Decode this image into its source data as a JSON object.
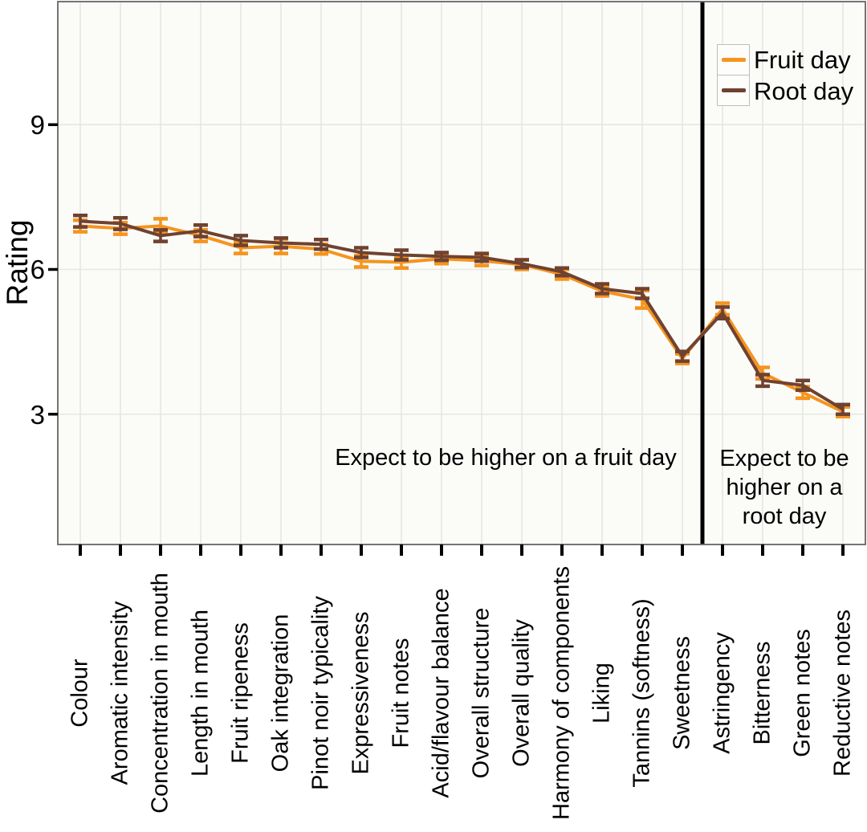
{
  "chart_data": {
    "type": "line",
    "title": "",
    "xlabel": "",
    "ylabel": "Rating",
    "ylim": [
      0.3,
      11.55
    ],
    "yticks": [
      3,
      6,
      9
    ],
    "grid": "major",
    "legend_position": "top-right",
    "categories": [
      "Colour",
      "Aromatic intensity",
      "Concentration in mouth",
      "Length in mouth",
      "Fruit ripeness",
      "Oak integration",
      "Pinot noir typicality",
      "Expressiveness",
      "Fruit notes",
      "Acid/flavour balance",
      "Overall structure",
      "Overall quality",
      "Harmony of components",
      "Liking",
      "Tannins (softness)",
      "Sweetness",
      "Astringency",
      "Bitterness",
      "Green notes",
      "Reductive notes"
    ],
    "series": [
      {
        "name": "Fruit day",
        "color": "#F5941E",
        "values": [
          6.9,
          6.85,
          6.9,
          6.7,
          6.45,
          6.48,
          6.42,
          6.17,
          6.15,
          6.22,
          6.18,
          6.1,
          5.9,
          5.55,
          5.38,
          4.15,
          5.18,
          3.85,
          3.45,
          3.05
        ],
        "errors": [
          0.12,
          0.12,
          0.15,
          0.12,
          0.12,
          0.15,
          0.1,
          0.12,
          0.12,
          0.1,
          0.1,
          0.1,
          0.1,
          0.1,
          0.18,
          0.1,
          0.12,
          0.12,
          0.12,
          0.1
        ]
      },
      {
        "name": "Root day",
        "color": "#6F4230",
        "values": [
          7.0,
          6.95,
          6.7,
          6.8,
          6.6,
          6.55,
          6.52,
          6.35,
          6.3,
          6.27,
          6.25,
          6.12,
          5.95,
          5.6,
          5.5,
          4.2,
          5.1,
          3.7,
          3.6,
          3.1
        ],
        "errors": [
          0.12,
          0.12,
          0.12,
          0.12,
          0.1,
          0.1,
          0.1,
          0.1,
          0.1,
          0.08,
          0.08,
          0.08,
          0.08,
          0.1,
          0.1,
          0.1,
          0.12,
          0.12,
          0.1,
          0.1
        ]
      }
    ],
    "divider": {
      "after_category": "Sweetness",
      "color": "#000000"
    },
    "annotations": [
      {
        "text": "Expect to be higher on a fruit day",
        "side": "left-of-divider"
      },
      {
        "text": "Expect to be\nhigher on a\nroot day",
        "side": "right-of-divider"
      }
    ],
    "style": {
      "panel_bg": "#fbfbf8",
      "panel_border": "#666666",
      "grid_color": "#e6e7e1",
      "tick_color": "#000000"
    }
  }
}
